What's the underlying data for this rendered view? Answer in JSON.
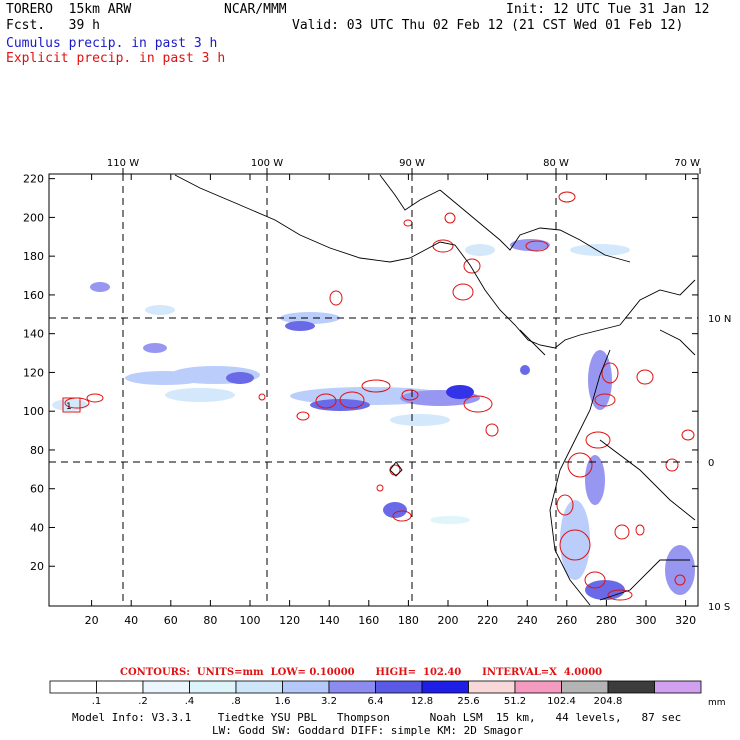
{
  "header": {
    "model_run": "TORERO  15km ARW",
    "forecast": "Fcst.   39 h",
    "center": "NCAR/MMM",
    "init": "Init: 12 UTC Tue 31 Jan 12",
    "valid": "Valid: 03 UTC Thu 02 Feb 12 (21 CST Wed 01 Feb 12)"
  },
  "legend": {
    "cumulus": "Cumulus precip. in past 3 h",
    "explicit": "Explicit precip. in past 3 h"
  },
  "axes": {
    "x_ticks": [
      "20",
      "40",
      "60",
      "80",
      "100",
      "120",
      "140",
      "160",
      "180",
      "200",
      "220",
      "240",
      "260",
      "280",
      "300",
      "320"
    ],
    "y_ticks": [
      "20",
      "40",
      "60",
      "80",
      "100",
      "120",
      "140",
      "160",
      "180",
      "200",
      "220"
    ],
    "lon_labels": [
      "110 W",
      "100 W",
      "90 W",
      "80 W",
      "70 W"
    ],
    "lat_labels": [
      "10 N",
      "0",
      "10 S"
    ],
    "box_label": "1"
  },
  "contours": {
    "text": "CONTOURS:  UNITS=mm  LOW= 0.10000      HIGH=  102.40      INTERVAL=X  4.0000"
  },
  "colorbar": {
    "levels": [
      "",
      ".1",
      ".2",
      ".4",
      ".8",
      "1.6",
      "3.2",
      "6.4",
      "12.8",
      "25.6",
      "51.2",
      "102.4",
      "204.8"
    ],
    "colors": [
      "#ffffff",
      "#ffffff",
      "#ebf6ff",
      "#dcf4fa",
      "#cfe6fa",
      "#b4c8fa",
      "#8c8cf0",
      "#5a5ae6",
      "#1e1ee6",
      "#f8d8d8",
      "#f59bc0",
      "#b4b4b4",
      "#3c3c3c",
      "#d2a0f0"
    ],
    "units": "mm"
  },
  "footer": {
    "line1": "Model Info: V3.3.1    Tiedtke YSU PBL   Thompson      Noah LSM  15 km,   44 levels,   87 sec",
    "line2": "LW: Godd SW: Goddard DIFF: simple KM: 2D Smagor"
  }
}
